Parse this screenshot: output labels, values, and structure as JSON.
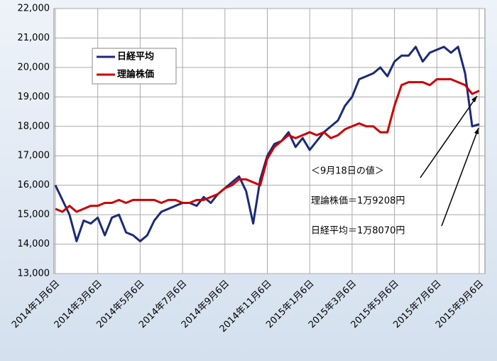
{
  "chart_data": {
    "type": "line",
    "categories": [
      "2014年1月6日",
      null,
      null,
      null,
      null,
      null,
      "2014年3月6日",
      null,
      null,
      null,
      null,
      null,
      "2014年5月6日",
      null,
      null,
      null,
      null,
      null,
      "2014年7月6日",
      null,
      null,
      null,
      null,
      null,
      "2014年9月6日",
      null,
      null,
      null,
      null,
      null,
      "2014年11月6日",
      null,
      null,
      null,
      null,
      null,
      "2015年1月6日",
      null,
      null,
      null,
      null,
      null,
      "2015年3月6日",
      null,
      null,
      null,
      null,
      null,
      "2015年5月6日",
      null,
      null,
      null,
      null,
      null,
      "2015年7月6日",
      null,
      null,
      null,
      null,
      null,
      "2015年9月6日"
    ],
    "series": [
      {
        "name": "日経平均",
        "color": "#1c2a78",
        "values": [
          16000,
          15500,
          15000,
          14100,
          14800,
          14700,
          14900,
          14300,
          14900,
          15000,
          14400,
          14300,
          14100,
          14300,
          14800,
          15100,
          15200,
          15300,
          15400,
          15400,
          15300,
          15600,
          15400,
          15700,
          15900,
          16100,
          16300,
          15800,
          14700,
          16200,
          17000,
          17400,
          17500,
          17800,
          17300,
          17600,
          17200,
          17500,
          17800,
          18000,
          18200,
          18700,
          19000,
          19600,
          19700,
          19800,
          20000,
          19700,
          20200,
          20400,
          20400,
          20700,
          20200,
          20500,
          20600,
          20700,
          20500,
          20700,
          19800,
          18000,
          18070
        ]
      },
      {
        "name": "理論株価",
        "color": "#cc0000",
        "values": [
          15200,
          15100,
          15300,
          15100,
          15200,
          15300,
          15300,
          15400,
          15400,
          15500,
          15400,
          15500,
          15500,
          15500,
          15500,
          15400,
          15500,
          15500,
          15400,
          15400,
          15500,
          15500,
          15600,
          15700,
          15900,
          16000,
          16200,
          16200,
          16100,
          16000,
          16900,
          17300,
          17500,
          17700,
          17600,
          17700,
          17800,
          17700,
          17800,
          17600,
          17700,
          17900,
          18000,
          18100,
          18000,
          18000,
          17800,
          17800,
          18700,
          19400,
          19500,
          19500,
          19500,
          19400,
          19600,
          19600,
          19600,
          19500,
          19400,
          19100,
          19208
        ]
      }
    ],
    "ylim": [
      13000,
      22000
    ],
    "yticks": [
      {
        "value": 13000,
        "label": "13,000"
      },
      {
        "value": 14000,
        "label": "14,000"
      },
      {
        "value": 15000,
        "label": "15,000"
      },
      {
        "value": 16000,
        "label": "16,000"
      },
      {
        "value": 17000,
        "label": "17,000"
      },
      {
        "value": 18000,
        "label": "18,000"
      },
      {
        "value": 19000,
        "label": "19,000"
      },
      {
        "value": 20000,
        "label": "20,000"
      },
      {
        "value": 21000,
        "label": "21,000"
      },
      {
        "value": 22000,
        "label": "22,000"
      }
    ],
    "grid": true,
    "annotations": [
      "＜9月18日の値＞",
      "理論株価＝1万9208円",
      "日経平均＝1万8070円"
    ]
  }
}
